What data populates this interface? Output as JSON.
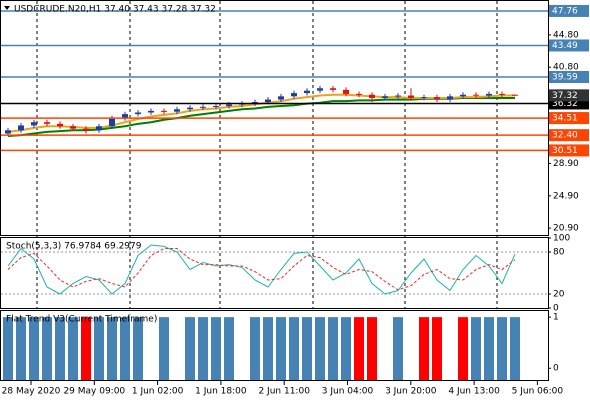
{
  "chart_data": [
    {
      "type": "candlestick",
      "title": "USDCRUDE.N20,H1  37.40 37.43 37.28 37.32",
      "open": [
        32.6,
        33.0,
        33.6,
        34.0,
        33.8,
        33.5,
        33.2,
        33.0,
        33.5,
        34.5,
        35.0,
        35.2,
        35.4,
        35.3,
        35.6,
        35.8,
        35.9,
        36.0,
        36.2,
        36.3,
        36.5,
        36.8,
        37.2,
        37.6,
        37.9,
        38.2,
        38.0,
        37.5,
        37.4,
        37.0,
        37.2,
        37.3,
        37.0,
        37.1,
        36.8,
        37.2,
        37.4,
        37.3,
        37.5,
        37.4
      ],
      "high": [
        33.3,
        33.9,
        34.3,
        34.3,
        34.1,
        33.8,
        33.5,
        33.8,
        34.8,
        35.3,
        35.5,
        35.7,
        35.7,
        35.9,
        36.1,
        36.2,
        36.3,
        36.5,
        36.6,
        36.8,
        37.1,
        37.5,
        37.9,
        38.2,
        38.5,
        38.5,
        38.3,
        37.8,
        37.7,
        37.5,
        37.6,
        38.2,
        37.4,
        37.4,
        37.5,
        37.7,
        37.7,
        37.8,
        37.8,
        37.43
      ],
      "low": [
        32.3,
        32.7,
        33.3,
        33.5,
        33.2,
        32.9,
        32.6,
        32.7,
        33.2,
        34.2,
        34.7,
        34.9,
        35.0,
        35.0,
        35.3,
        35.5,
        35.6,
        35.7,
        35.9,
        36.0,
        36.2,
        36.5,
        36.9,
        37.3,
        37.6,
        37.7,
        37.2,
        37.1,
        36.5,
        36.7,
        36.9,
        36.7,
        36.7,
        36.5,
        36.5,
        36.9,
        37.0,
        37.0,
        37.1,
        37.28
      ],
      "close": [
        33.0,
        33.6,
        34.0,
        33.8,
        33.5,
        33.2,
        33.0,
        33.5,
        34.5,
        35.0,
        35.2,
        35.4,
        35.3,
        35.6,
        35.8,
        35.9,
        36.0,
        36.2,
        36.3,
        36.5,
        36.8,
        37.2,
        37.6,
        37.9,
        38.2,
        38.0,
        37.5,
        37.4,
        37.0,
        37.2,
        37.3,
        37.0,
        37.1,
        36.8,
        37.2,
        37.4,
        37.3,
        37.5,
        37.4,
        37.32
      ],
      "up_color": "#1f3fa0",
      "down_color": "#e01010",
      "lines": [
        {
          "color": "#008000",
          "values": [
            32.3,
            32.4,
            32.6,
            32.8,
            32.9,
            33.0,
            33.0,
            33.1,
            33.3,
            33.5,
            33.8,
            34.0,
            34.3,
            34.5,
            34.8,
            35.0,
            35.2,
            35.4,
            35.6,
            35.7,
            35.9,
            36.0,
            36.1,
            36.3,
            36.4,
            36.6,
            36.6,
            36.7,
            36.7,
            36.8,
            36.8,
            36.8,
            36.9,
            36.9,
            36.9,
            37.0,
            37.0,
            37.0,
            37.0,
            37.0
          ]
        },
        {
          "color": "#f0a020",
          "values": [
            32.8,
            33.0,
            33.3,
            33.5,
            33.5,
            33.4,
            33.3,
            33.3,
            33.6,
            34.0,
            34.4,
            34.7,
            34.9,
            35.1,
            35.4,
            35.6,
            35.7,
            35.9,
            36.0,
            36.2,
            36.4,
            36.6,
            36.9,
            37.1,
            37.3,
            37.4,
            37.4,
            37.3,
            37.2,
            37.1,
            37.1,
            37.0,
            37.0,
            37.0,
            37.0,
            37.1,
            37.1,
            37.2,
            37.3,
            37.3
          ]
        }
      ],
      "ylim": [
        20.05,
        48.99
      ],
      "yticks": [
        {
          "value": 44.8,
          "label": "44.80"
        },
        {
          "value": 40.8,
          "label": "40.80"
        },
        {
          "value": 28.9,
          "label": "28.90"
        },
        {
          "value": 24.9,
          "label": "24.90"
        },
        {
          "value": 20.9,
          "label": "20.90"
        }
      ],
      "levels": [
        {
          "value": 47.76,
          "color": "#4682b4"
        },
        {
          "value": 43.49,
          "color": "#4682b4"
        },
        {
          "value": 39.59,
          "color": "#4682b4"
        },
        {
          "value": 36.32,
          "color": "#000000"
        },
        {
          "value": 34.51,
          "color": "#ff4500"
        },
        {
          "value": 32.4,
          "label": "32.40",
          "color": "#ff4500"
        },
        {
          "value": 30.51,
          "color": "#ff4500"
        }
      ],
      "price_label": {
        "value": 37.32,
        "color": "#333333"
      }
    },
    {
      "type": "line",
      "title": "Stoch(5,3,3) 76.9784 69.2979",
      "series": [
        {
          "color": "#20b2aa",
          "dashed": false,
          "values": [
            60,
            85,
            70,
            30,
            20,
            35,
            45,
            40,
            20,
            35,
            75,
            90,
            88,
            80,
            55,
            65,
            60,
            62,
            58,
            40,
            30,
            55,
            78,
            80,
            60,
            40,
            50,
            70,
            35,
            20,
            25,
            50,
            70,
            40,
            25,
            55,
            75,
            60,
            35,
            77
          ]
        },
        {
          "color": "#e03030",
          "dashed": true,
          "values": [
            55,
            72,
            78,
            60,
            40,
            30,
            38,
            42,
            35,
            30,
            50,
            75,
            85,
            85,
            70,
            62,
            62,
            60,
            60,
            52,
            40,
            42,
            60,
            75,
            72,
            58,
            48,
            55,
            52,
            38,
            26,
            32,
            48,
            55,
            42,
            40,
            55,
            62,
            55,
            69
          ]
        }
      ],
      "levels": [
        80,
        20
      ],
      "ylim": [
        0,
        100
      ],
      "yticks": [
        100,
        80,
        20,
        0
      ]
    },
    {
      "type": "bar",
      "title": "Flat Trend V3(Current Timeframe)",
      "values": [
        1,
        1,
        1,
        1,
        1,
        1,
        1,
        1,
        1,
        1,
        1,
        1,
        1,
        1,
        1,
        1,
        1,
        1,
        1,
        1,
        1,
        1,
        1,
        1,
        1,
        1,
        1,
        1,
        1,
        1,
        1,
        1,
        1,
        1,
        1,
        1,
        1,
        1,
        1,
        1
      ],
      "colors": [
        "#4682b4",
        "#4682b4",
        "#4682b4",
        "#4682b4",
        "#4682b4",
        "#4682b4",
        "#ff0000",
        "#4682b4",
        "#4682b4",
        "#4682b4",
        "#4682b4",
        "#ffffff",
        "#4682b4",
        "#ffffff",
        "#4682b4",
        "#4682b4",
        "#4682b4",
        "#4682b4",
        "#ffffff",
        "#4682b4",
        "#4682b4",
        "#4682b4",
        "#4682b4",
        "#4682b4",
        "#4682b4",
        "#4682b4",
        "#4682b4",
        "#ff0000",
        "#ff0000",
        "#ffffff",
        "#4682b4",
        "#ffffff",
        "#ff0000",
        "#ff0000",
        "#ffffff",
        "#ff0000",
        "#4682b4",
        "#4682b4",
        "#4682b4",
        "#4682b4"
      ],
      "ylim": [
        -0.23,
        1.12
      ],
      "yticks": [
        1,
        0
      ]
    }
  ],
  "x_labels": [
    "28 May 2020",
    "29 May 09:00",
    "1 Jun 02:00",
    "1 Jun 18:00",
    "2 Jun 11:00",
    "3 Jun 04:00",
    "3 Jun 20:00",
    "4 Jun 13:00",
    "5 Jun 06:00"
  ]
}
